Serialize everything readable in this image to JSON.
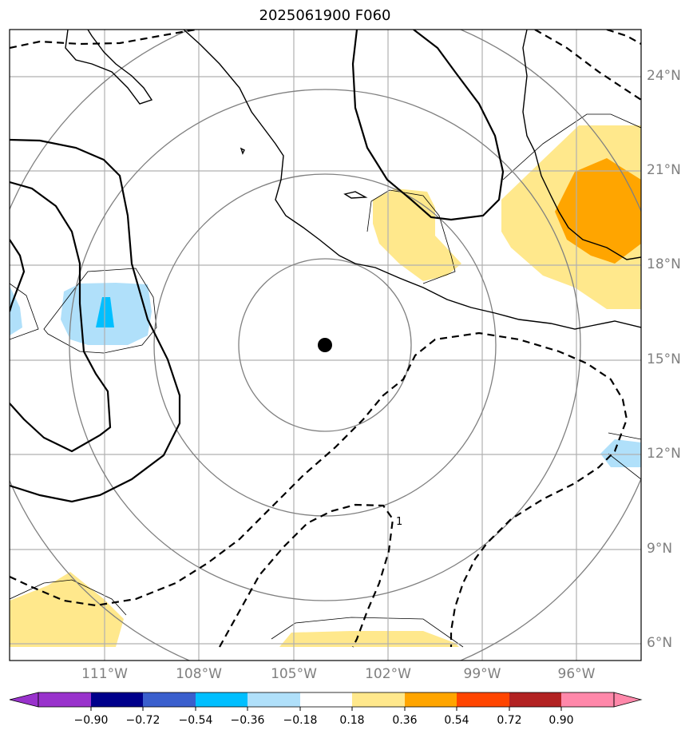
{
  "title": "2025061900 F060",
  "map": {
    "lat_labels": [
      "24°N",
      "21°N",
      "18°N",
      "15°N",
      "12°N",
      "9°N",
      "6°N"
    ],
    "lon_labels": [
      "111°W",
      "108°W",
      "105°W",
      "102°W",
      "99°W",
      "96°W"
    ],
    "contour_label": "1"
  },
  "colorbar": {
    "tick_labels": [
      "−0.90",
      "−0.72",
      "−0.54",
      "−0.36",
      "−0.18",
      "0.18",
      "0.36",
      "0.54",
      "0.72",
      "0.90"
    ],
    "colors": [
      "#9932cc",
      "#00008b",
      "#3a5fcd",
      "#00bfff",
      "#b0e0fa",
      "#ffffff",
      "#ffe88c",
      "#ffa500",
      "#ff4500",
      "#b22222",
      "#ff88aa"
    ]
  },
  "colors": {
    "land_outline": "#000000",
    "grid": "#b0b0b0",
    "range_rings": "#808080",
    "center_marker": "#000000"
  }
}
